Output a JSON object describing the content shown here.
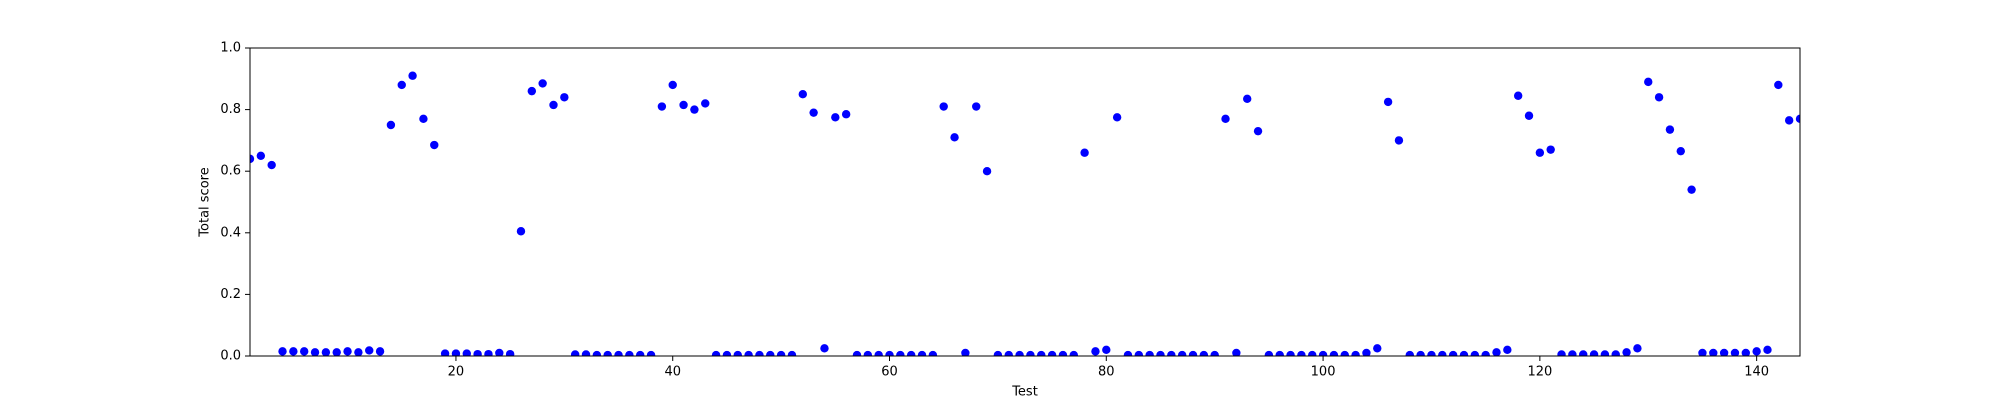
{
  "chart_data": {
    "type": "scatter",
    "xlabel": "Test",
    "ylabel": "Total score",
    "x": [
      1,
      2,
      3,
      4,
      5,
      6,
      7,
      8,
      9,
      10,
      11,
      12,
      13,
      14,
      15,
      16,
      17,
      18,
      19,
      20,
      21,
      22,
      23,
      24,
      25,
      26,
      27,
      28,
      29,
      30,
      31,
      32,
      33,
      34,
      35,
      36,
      37,
      38,
      39,
      40,
      41,
      42,
      43,
      44,
      45,
      46,
      47,
      48,
      49,
      50,
      51,
      52,
      53,
      54,
      55,
      56,
      57,
      58,
      59,
      60,
      61,
      62,
      63,
      64,
      65,
      66,
      67,
      68,
      69,
      70,
      71,
      72,
      73,
      74,
      75,
      76,
      77,
      78,
      79,
      80,
      81,
      82,
      83,
      84,
      85,
      86,
      87,
      88,
      89,
      90,
      91,
      92,
      93,
      94,
      95,
      96,
      97,
      98,
      99,
      100,
      101,
      102,
      103,
      104,
      105,
      106,
      107,
      108,
      109,
      110,
      111,
      112,
      113,
      114,
      115,
      116,
      117,
      118,
      119,
      120,
      121,
      122,
      123,
      124,
      125,
      126,
      127,
      128,
      129,
      130,
      131,
      132,
      133,
      134,
      135,
      136,
      137,
      138,
      139,
      140,
      141,
      142,
      143,
      144
    ],
    "values": [
      0.64,
      0.65,
      0.62,
      0.015,
      0.015,
      0.015,
      0.012,
      0.012,
      0.012,
      0.015,
      0.012,
      0.018,
      0.015,
      0.75,
      0.88,
      0.91,
      0.77,
      0.685,
      0.008,
      0.008,
      0.008,
      0.006,
      0.006,
      0.01,
      0.006,
      0.405,
      0.86,
      0.885,
      0.815,
      0.84,
      0.005,
      0.005,
      0.003,
      0.003,
      0.003,
      0.003,
      0.003,
      0.003,
      0.81,
      0.88,
      0.815,
      0.8,
      0.82,
      0.003,
      0.003,
      0.003,
      0.003,
      0.003,
      0.003,
      0.003,
      0.003,
      0.85,
      0.79,
      0.025,
      0.775,
      0.785,
      0.003,
      0.003,
      0.003,
      0.003,
      0.003,
      0.003,
      0.003,
      0.003,
      0.81,
      0.71,
      0.01,
      0.81,
      0.6,
      0.003,
      0.003,
      0.003,
      0.003,
      0.003,
      0.003,
      0.003,
      0.003,
      0.66,
      0.015,
      0.02,
      0.775,
      0.003,
      0.003,
      0.003,
      0.003,
      0.003,
      0.003,
      0.003,
      0.003,
      0.003,
      0.77,
      0.01,
      0.835,
      0.73,
      0.003,
      0.003,
      0.003,
      0.003,
      0.003,
      0.003,
      0.003,
      0.003,
      0.003,
      0.01,
      0.025,
      0.825,
      0.7,
      0.003,
      0.003,
      0.003,
      0.003,
      0.003,
      0.003,
      0.003,
      0.003,
      0.012,
      0.02,
      0.845,
      0.78,
      0.66,
      0.67,
      0.005,
      0.005,
      0.005,
      0.005,
      0.005,
      0.005,
      0.012,
      0.025,
      0.89,
      0.84,
      0.735,
      0.665,
      0.54,
      0.01,
      0.01,
      0.01,
      0.01,
      0.01,
      0.015,
      0.02,
      0.88,
      0.765,
      0.77
    ],
    "color": "#0000ff",
    "xlim": [
      1,
      144
    ],
    "xticks": [
      20,
      40,
      60,
      80,
      100,
      120,
      140
    ],
    "ylim": [
      0,
      1
    ],
    "yticks": [
      {
        "value": 0,
        "label": "0.0"
      },
      0.2,
      0.4,
      0.6,
      0.8,
      {
        "value": 1,
        "label": "1.0"
      }
    ]
  }
}
